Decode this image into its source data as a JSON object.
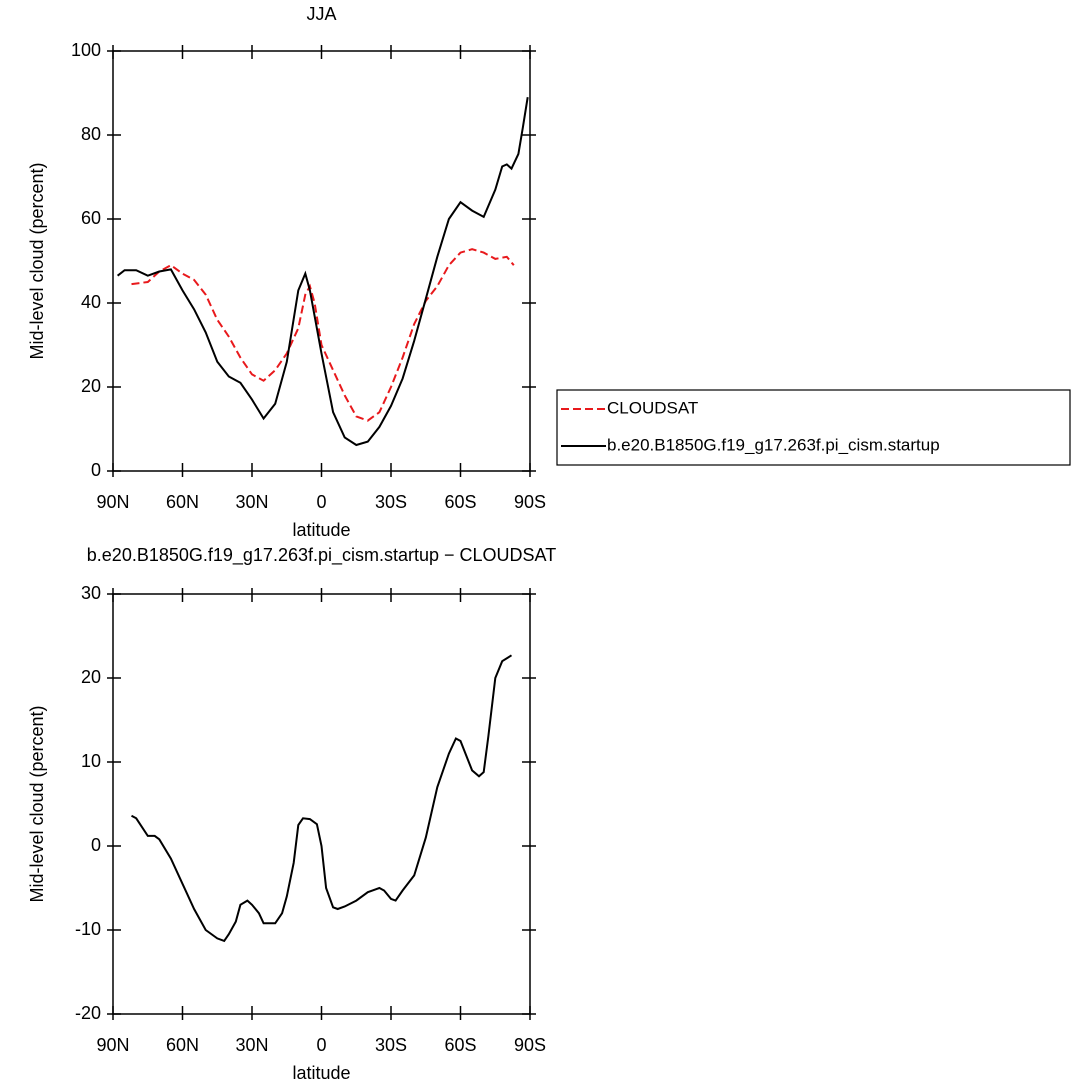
{
  "chart_data": [
    {
      "type": "line",
      "title": "JJA",
      "xlabel": "latitude",
      "ylabel": "Mid-level cloud (percent)",
      "xlim": [
        90,
        -90
      ],
      "xticks": [
        {
          "value": 90,
          "label": "90N"
        },
        {
          "value": 60,
          "label": "60N"
        },
        {
          "value": 30,
          "label": "30N"
        },
        0,
        {
          "value": -30,
          "label": "30S"
        },
        {
          "value": -60,
          "label": "60S"
        },
        {
          "value": -90,
          "label": "90S"
        }
      ],
      "ylim": [
        0,
        100
      ],
      "yticks": [
        0,
        20,
        40,
        60,
        80,
        100
      ],
      "legend": "outside right",
      "series": [
        {
          "name": "CLOUDSAT",
          "color": "#e8191c",
          "dash": true,
          "x": [
            82,
            75,
            70,
            65,
            60,
            55,
            50,
            45,
            40,
            35,
            30,
            25,
            20,
            15,
            10,
            7,
            5,
            3,
            0,
            -5,
            -10,
            -15,
            -20,
            -25,
            -30,
            -35,
            -40,
            -45,
            -50,
            -55,
            -60,
            -65,
            -70,
            -75,
            -80,
            -83
          ],
          "values": [
            44.5,
            45,
            47.5,
            49,
            47,
            45.5,
            42,
            36,
            32,
            27,
            23,
            21.5,
            24,
            28,
            34,
            42,
            44,
            40,
            30,
            24,
            18,
            13,
            12,
            14,
            20,
            27,
            35,
            40.5,
            44,
            49,
            52,
            52.8,
            52,
            50.5,
            51,
            49
          ]
        },
        {
          "name": "b.e20.B1850G.f19_g17.263f.pi_cism.startup",
          "color": "#000000",
          "dash": false,
          "x": [
            88,
            85,
            80,
            75,
            70,
            65,
            60,
            55,
            50,
            45,
            40,
            35,
            30,
            25,
            20,
            15,
            10,
            7,
            5,
            0,
            -5,
            -10,
            -15,
            -20,
            -25,
            -30,
            -35,
            -40,
            -45,
            -50,
            -55,
            -60,
            -65,
            -70,
            -75,
            -78,
            -80,
            -82,
            -85,
            -87,
            -89
          ],
          "values": [
            46.5,
            47.8,
            47.8,
            46.5,
            47.5,
            48,
            43,
            38.5,
            33,
            26,
            22.5,
            21,
            17,
            12.5,
            16,
            26,
            43,
            47,
            43,
            28,
            14,
            8,
            6.2,
            7,
            10.5,
            15.5,
            22,
            31,
            41,
            51,
            60,
            64,
            62,
            60.5,
            67,
            72.5,
            73,
            72,
            75.5,
            82,
            89
          ]
        }
      ]
    },
    {
      "type": "line",
      "title": "b.e20.B1850G.f19_g17.263f.pi_cism.startup − CLOUDSAT",
      "xlabel": "latitude",
      "ylabel": "Mid-level cloud (percent)",
      "xlim": [
        90,
        -90
      ],
      "xticks": [
        {
          "value": 90,
          "label": "90N"
        },
        {
          "value": 60,
          "label": "60N"
        },
        {
          "value": 30,
          "label": "30N"
        },
        0,
        {
          "value": -30,
          "label": "30S"
        },
        {
          "value": -60,
          "label": "60S"
        },
        {
          "value": -90,
          "label": "90S"
        }
      ],
      "ylim": [
        -20,
        30
      ],
      "yticks": [
        -20,
        -10,
        0,
        10,
        20,
        30
      ],
      "series": [
        {
          "color": "#000000",
          "dash": false,
          "x": [
            82,
            80,
            75,
            72,
            70,
            65,
            60,
            55,
            50,
            45,
            42,
            40,
            37,
            35,
            32,
            30,
            27,
            25,
            20,
            17,
            15,
            12,
            10,
            8,
            5,
            2,
            0,
            -2,
            -5,
            -7,
            -10,
            -15,
            -20,
            -25,
            -27,
            -30,
            -32,
            -35,
            -40,
            -45,
            -50,
            -55,
            -58,
            -60,
            -65,
            -68,
            -70,
            -72,
            -75,
            -78,
            -82
          ],
          "values": [
            3.6,
            3.3,
            1.2,
            1.2,
            0.8,
            -1.5,
            -4.5,
            -7.5,
            -10,
            -11,
            -11.3,
            -10.5,
            -9,
            -7,
            -6.5,
            -7,
            -8,
            -9.2,
            -9.2,
            -8,
            -6,
            -2,
            2.5,
            3.3,
            3.2,
            2.6,
            0,
            -5,
            -7.3,
            -7.5,
            -7.2,
            -6.5,
            -5.5,
            -5,
            -5.3,
            -6.3,
            -6.5,
            -5.3,
            -3.5,
            1,
            7,
            11,
            12.8,
            12.5,
            9,
            8.3,
            8.8,
            13,
            20,
            22,
            22.7
          ]
        }
      ]
    }
  ]
}
